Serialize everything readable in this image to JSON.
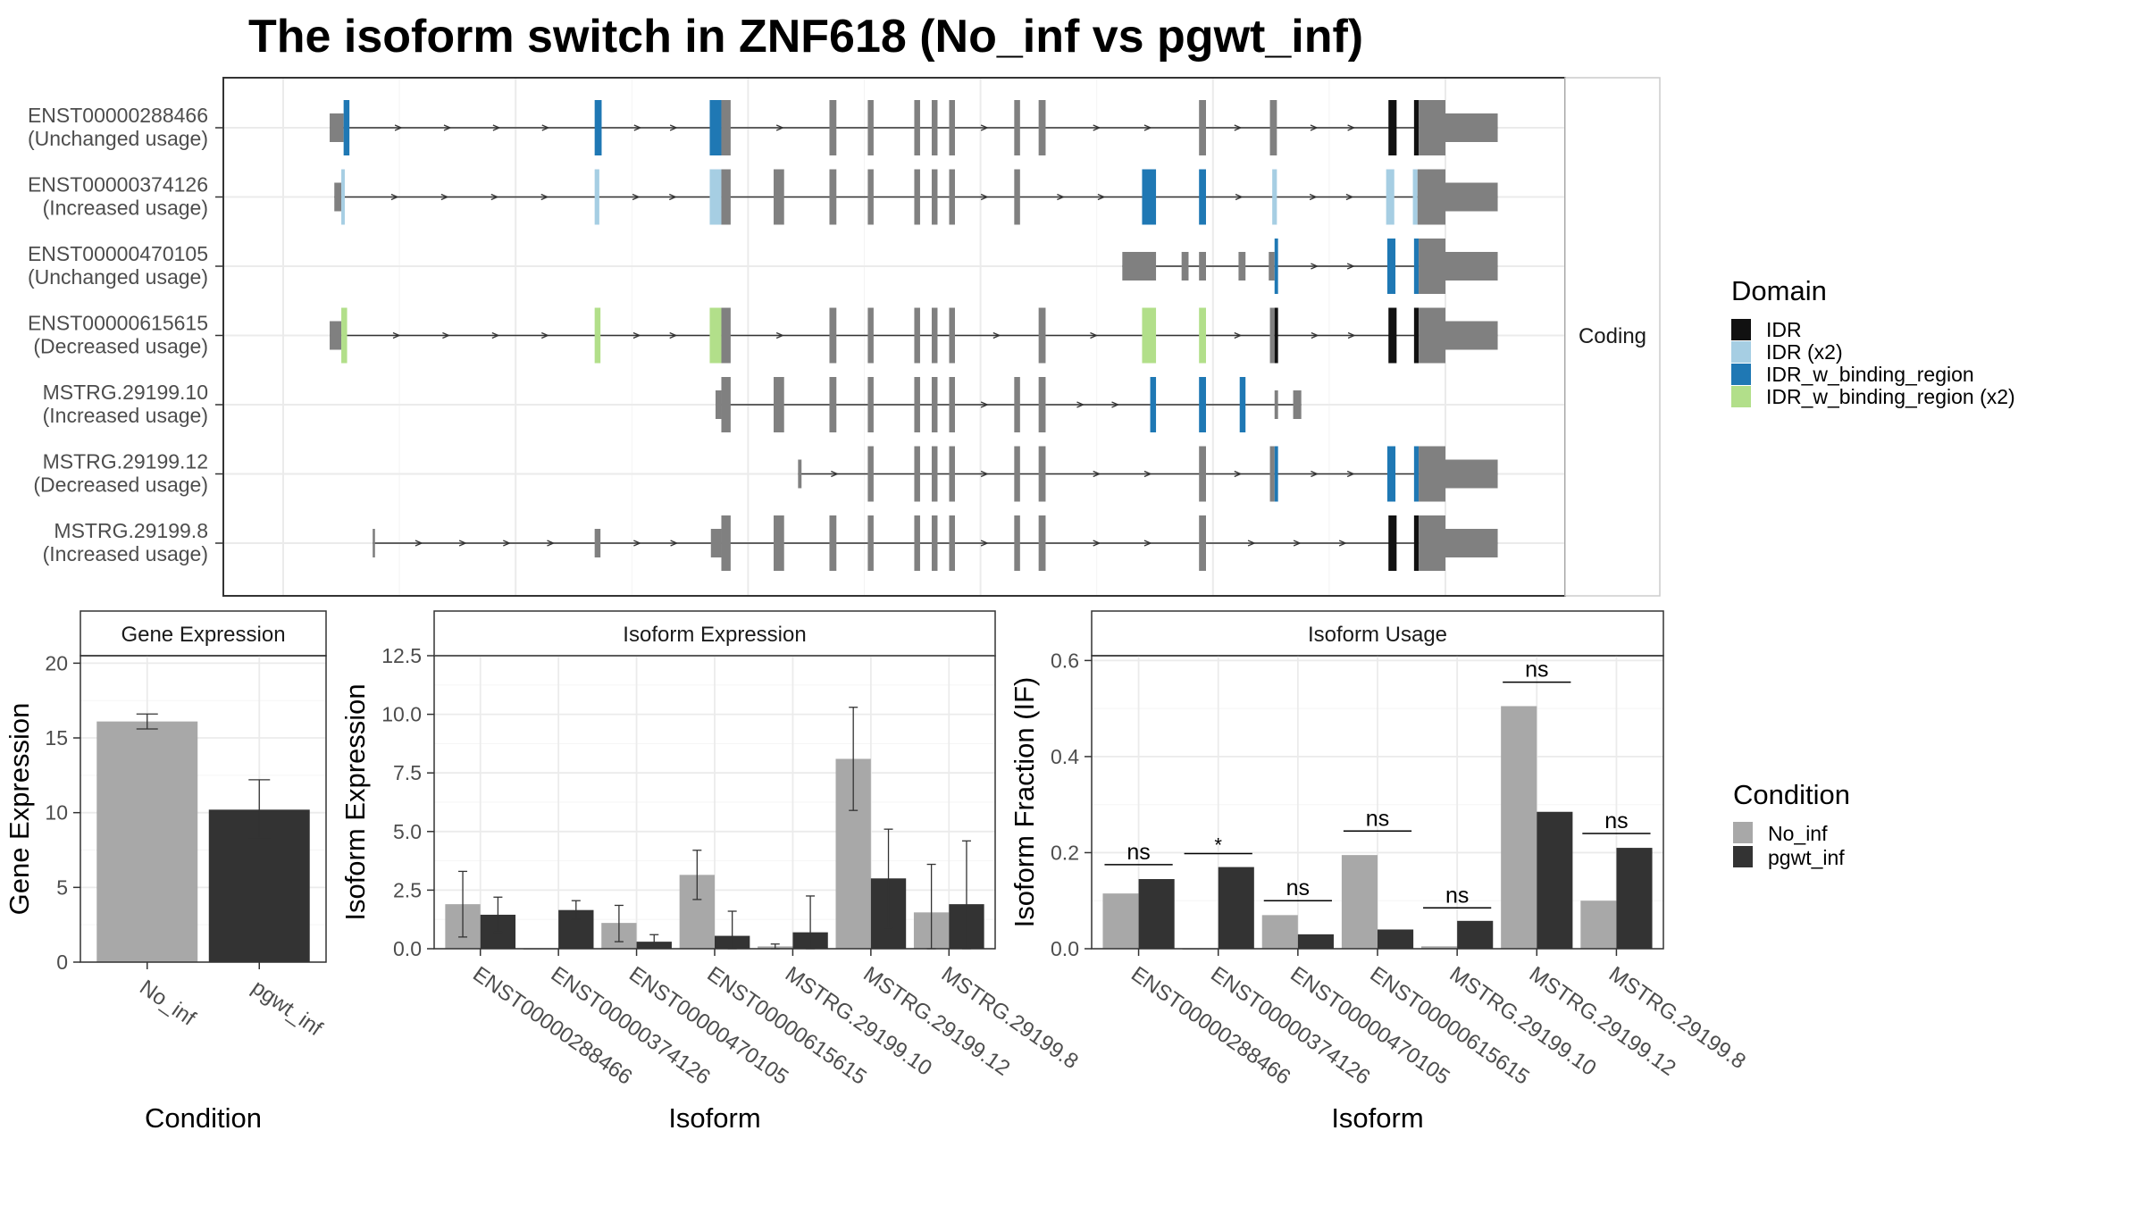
{
  "title": "The isoform switch in ZNF618 (No_inf vs pgwt_inf)",
  "colors": {
    "No_inf": "#a8a8a8",
    "pgwt_inf": "#333333",
    "exon": "#808080",
    "IDR": "#111111",
    "IDR (x2)": "#a6cee3",
    "IDR_w_binding_region": "#1f78b4",
    "IDR_w_binding_region (x2)": "#b2df8a"
  },
  "domain_legend": {
    "title": "Domain",
    "items": [
      "IDR",
      "IDR (x2)",
      "IDR_w_binding_region",
      "IDR_w_binding_region (x2)"
    ]
  },
  "condition_legend": {
    "title": "Condition",
    "items": [
      "No_inf",
      "pgwt_inf"
    ]
  },
  "structure_strip": "Coding",
  "chart_data": [
    {
      "type": "transcript-structure",
      "facet": "Coding",
      "x_range": [
        0,
        1000
      ],
      "transcripts": [
        {
          "id": "ENST00000288466",
          "usage": "(Unchanged usage)",
          "segments": [
            {
              "s": 40,
              "e": 52,
              "h": "utr"
            },
            {
              "s": 52,
              "e": 57,
              "d": "IDR_w_binding_region"
            },
            {
              "s": 268,
              "e": 274,
              "d": "IDR_w_binding_region"
            },
            {
              "s": 367,
              "e": 377,
              "d": "IDR_w_binding_region"
            },
            {
              "s": 377,
              "e": 385
            },
            {
              "s": 470,
              "e": 476
            },
            {
              "s": 503,
              "e": 508
            },
            {
              "s": 543,
              "e": 548
            },
            {
              "s": 558,
              "e": 563
            },
            {
              "s": 573,
              "e": 578
            },
            {
              "s": 629,
              "e": 634
            },
            {
              "s": 650,
              "e": 656
            },
            {
              "s": 788,
              "e": 794
            },
            {
              "s": 849,
              "e": 855
            },
            {
              "s": 951,
              "e": 958,
              "d": "IDR"
            },
            {
              "s": 973,
              "e": 977,
              "d": "IDR"
            },
            {
              "s": 977,
              "e": 1000
            },
            {
              "s": 1000,
              "e": 1045,
              "h": "utr"
            }
          ]
        },
        {
          "id": "ENST00000374126",
          "usage": "(Increased usage)",
          "segments": [
            {
              "s": 44,
              "e": 50,
              "h": "utr"
            },
            {
              "s": 50,
              "e": 53,
              "d": "IDR (x2)"
            },
            {
              "s": 268,
              "e": 272,
              "d": "IDR (x2)"
            },
            {
              "s": 367,
              "e": 377,
              "d": "IDR (x2)"
            },
            {
              "s": 377,
              "e": 385
            },
            {
              "s": 422,
              "e": 431
            },
            {
              "s": 470,
              "e": 476
            },
            {
              "s": 503,
              "e": 508
            },
            {
              "s": 543,
              "e": 548
            },
            {
              "s": 558,
              "e": 563
            },
            {
              "s": 573,
              "e": 578
            },
            {
              "s": 629,
              "e": 634
            },
            {
              "s": 739,
              "e": 751,
              "d": "IDR_w_binding_region"
            },
            {
              "s": 788,
              "e": 794,
              "d": "IDR_w_binding_region"
            },
            {
              "s": 851,
              "e": 855,
              "d": "IDR (x2)"
            },
            {
              "s": 949,
              "e": 956,
              "d": "IDR (x2)"
            },
            {
              "s": 972,
              "e": 976,
              "d": "IDR (x2)"
            },
            {
              "s": 976,
              "e": 1000
            },
            {
              "s": 1000,
              "e": 1045,
              "h": "utr"
            }
          ]
        },
        {
          "id": "ENST00000470105",
          "usage": "(Unchanged usage)",
          "segments": [
            {
              "s": 722,
              "e": 751,
              "h": "utr"
            },
            {
              "s": 773,
              "e": 779,
              "h": "utr"
            },
            {
              "s": 788,
              "e": 794,
              "h": "utr"
            },
            {
              "s": 822,
              "e": 828,
              "h": "utr"
            },
            {
              "s": 848,
              "e": 853,
              "h": "utr"
            },
            {
              "s": 853,
              "e": 856,
              "d": "IDR_w_binding_region"
            },
            {
              "s": 950,
              "e": 957,
              "d": "IDR_w_binding_region"
            },
            {
              "s": 973,
              "e": 977,
              "d": "IDR_w_binding_region"
            },
            {
              "s": 977,
              "e": 1000
            },
            {
              "s": 1000,
              "e": 1045,
              "h": "utr"
            }
          ]
        },
        {
          "id": "ENST00000615615",
          "usage": "(Decreased usage)",
          "segments": [
            {
              "s": 40,
              "e": 50,
              "h": "utr"
            },
            {
              "s": 50,
              "e": 55,
              "d": "IDR_w_binding_region (x2)"
            },
            {
              "s": 268,
              "e": 273,
              "d": "IDR_w_binding_region (x2)"
            },
            {
              "s": 367,
              "e": 377,
              "d": "IDR_w_binding_region (x2)"
            },
            {
              "s": 377,
              "e": 385
            },
            {
              "s": 470,
              "e": 476
            },
            {
              "s": 503,
              "e": 508
            },
            {
              "s": 543,
              "e": 548
            },
            {
              "s": 558,
              "e": 563
            },
            {
              "s": 573,
              "e": 578
            },
            {
              "s": 650,
              "e": 656
            },
            {
              "s": 739,
              "e": 751,
              "d": "IDR_w_binding_region (x2)"
            },
            {
              "s": 788,
              "e": 794,
              "d": "IDR_w_binding_region (x2)"
            },
            {
              "s": 849,
              "e": 853
            },
            {
              "s": 853,
              "e": 856,
              "d": "IDR"
            },
            {
              "s": 951,
              "e": 958,
              "d": "IDR"
            },
            {
              "s": 973,
              "e": 977,
              "d": "IDR"
            },
            {
              "s": 977,
              "e": 1000
            },
            {
              "s": 1000,
              "e": 1045,
              "h": "utr"
            }
          ]
        },
        {
          "id": "MSTRG.29199.10",
          "usage": "(Increased usage)",
          "segments": [
            {
              "s": 372,
              "e": 377,
              "h": "utr"
            },
            {
              "s": 377,
              "e": 385
            },
            {
              "s": 422,
              "e": 431
            },
            {
              "s": 470,
              "e": 476
            },
            {
              "s": 503,
              "e": 508
            },
            {
              "s": 543,
              "e": 548
            },
            {
              "s": 558,
              "e": 563
            },
            {
              "s": 573,
              "e": 578
            },
            {
              "s": 629,
              "e": 634
            },
            {
              "s": 650,
              "e": 656
            },
            {
              "s": 746,
              "e": 751,
              "d": "IDR_w_binding_region"
            },
            {
              "s": 788,
              "e": 794,
              "d": "IDR_w_binding_region"
            },
            {
              "s": 823,
              "e": 828,
              "d": "IDR_w_binding_region"
            },
            {
              "s": 853,
              "e": 856,
              "h": "utr"
            },
            {
              "s": 869,
              "e": 876,
              "h": "utr"
            }
          ]
        },
        {
          "id": "MSTRG.29199.12",
          "usage": "(Decreased usage)",
          "segments": [
            {
              "s": 443,
              "e": 446,
              "h": "utr"
            },
            {
              "s": 503,
              "e": 508
            },
            {
              "s": 543,
              "e": 548
            },
            {
              "s": 558,
              "e": 563
            },
            {
              "s": 573,
              "e": 578
            },
            {
              "s": 629,
              "e": 634
            },
            {
              "s": 650,
              "e": 656
            },
            {
              "s": 788,
              "e": 794
            },
            {
              "s": 849,
              "e": 853
            },
            {
              "s": 853,
              "e": 856,
              "d": "IDR_w_binding_region"
            },
            {
              "s": 950,
              "e": 957,
              "d": "IDR_w_binding_region"
            },
            {
              "s": 973,
              "e": 977,
              "d": "IDR_w_binding_region"
            },
            {
              "s": 977,
              "e": 1000
            },
            {
              "s": 1000,
              "e": 1045,
              "h": "utr"
            }
          ]
        },
        {
          "id": "MSTRG.29199.8",
          "usage": "(Increased usage)",
          "segments": [
            {
              "s": 77,
              "e": 79,
              "h": "utr"
            },
            {
              "s": 268,
              "e": 273,
              "h": "utr"
            },
            {
              "s": 368,
              "e": 377,
              "h": "utr"
            },
            {
              "s": 377,
              "e": 385
            },
            {
              "s": 422,
              "e": 431
            },
            {
              "s": 470,
              "e": 476
            },
            {
              "s": 503,
              "e": 508
            },
            {
              "s": 543,
              "e": 548
            },
            {
              "s": 558,
              "e": 563
            },
            {
              "s": 573,
              "e": 578
            },
            {
              "s": 629,
              "e": 634
            },
            {
              "s": 650,
              "e": 656
            },
            {
              "s": 788,
              "e": 794
            },
            {
              "s": 951,
              "e": 958,
              "d": "IDR"
            },
            {
              "s": 973,
              "e": 977,
              "d": "IDR"
            },
            {
              "s": 977,
              "e": 1000
            },
            {
              "s": 1000,
              "e": 1045,
              "h": "utr"
            }
          ]
        }
      ]
    },
    {
      "type": "bar",
      "title": "Gene Expression",
      "xlabel": "Condition",
      "ylabel": "Gene Expression",
      "ylim": [
        0,
        20.5
      ],
      "yticks": [
        0,
        5,
        10,
        15,
        20
      ],
      "categories": [
        "No_inf",
        "pgwt_inf"
      ],
      "values": [
        16.1,
        10.2
      ],
      "error_low": [
        15.6,
        8.3
      ],
      "error_high": [
        16.6,
        12.2
      ]
    },
    {
      "type": "bar",
      "title": "Isoform Expression",
      "xlabel": "Isoform",
      "ylabel": "Isoform Expression",
      "ylim": [
        0,
        12.5
      ],
      "yticks": [
        0.0,
        2.5,
        5.0,
        7.5,
        10.0,
        12.5
      ],
      "ytick_labels": [
        "0.0",
        "2.5",
        "5.0",
        "7.5",
        "10.0",
        "12.5"
      ],
      "categories": [
        "ENST00000288466",
        "ENST00000374126",
        "ENST00000470105",
        "ENST00000615615",
        "MSTRG.29199.10",
        "MSTRG.29199.12",
        "MSTRG.29199.8"
      ],
      "series": [
        {
          "name": "No_inf",
          "values": [
            1.9,
            0.0,
            1.1,
            3.15,
            0.1,
            8.1,
            1.55
          ],
          "error_low": [
            0.5,
            0.0,
            0.3,
            2.1,
            0.0,
            5.9,
            0.0
          ],
          "error_high": [
            3.3,
            0.0,
            1.85,
            4.2,
            0.2,
            10.3,
            3.6
          ]
        },
        {
          "name": "pgwt_inf",
          "values": [
            1.45,
            1.65,
            0.3,
            0.55,
            0.7,
            3.0,
            1.9
          ],
          "error_low": [
            0.7,
            1.25,
            0.05,
            0.0,
            0.0,
            0.9,
            0.0
          ],
          "error_high": [
            2.2,
            2.05,
            0.6,
            1.6,
            2.25,
            5.1,
            4.6
          ]
        }
      ]
    },
    {
      "type": "bar",
      "title": "Isoform Usage",
      "xlabel": "Isoform",
      "ylabel": "Isoform Fraction (IF)",
      "ylim": [
        0,
        0.61
      ],
      "yticks": [
        0.0,
        0.2,
        0.4,
        0.6
      ],
      "ytick_labels": [
        "0.0",
        "0.2",
        "0.4",
        "0.6"
      ],
      "categories": [
        "ENST00000288466",
        "ENST00000374126",
        "ENST00000470105",
        "ENST00000615615",
        "MSTRG.29199.10",
        "MSTRG.29199.12",
        "MSTRG.29199.8"
      ],
      "series": [
        {
          "name": "No_inf",
          "values": [
            0.115,
            0.0,
            0.07,
            0.195,
            0.005,
            0.505,
            0.1
          ]
        },
        {
          "name": "pgwt_inf",
          "values": [
            0.145,
            0.17,
            0.03,
            0.04,
            0.058,
            0.285,
            0.21
          ]
        }
      ],
      "annotations": [
        "ns",
        "*",
        "ns",
        "ns",
        "ns",
        "ns",
        "ns"
      ],
      "annotation_y": [
        0.175,
        0.198,
        0.1,
        0.245,
        0.085,
        0.555,
        0.24
      ]
    }
  ]
}
